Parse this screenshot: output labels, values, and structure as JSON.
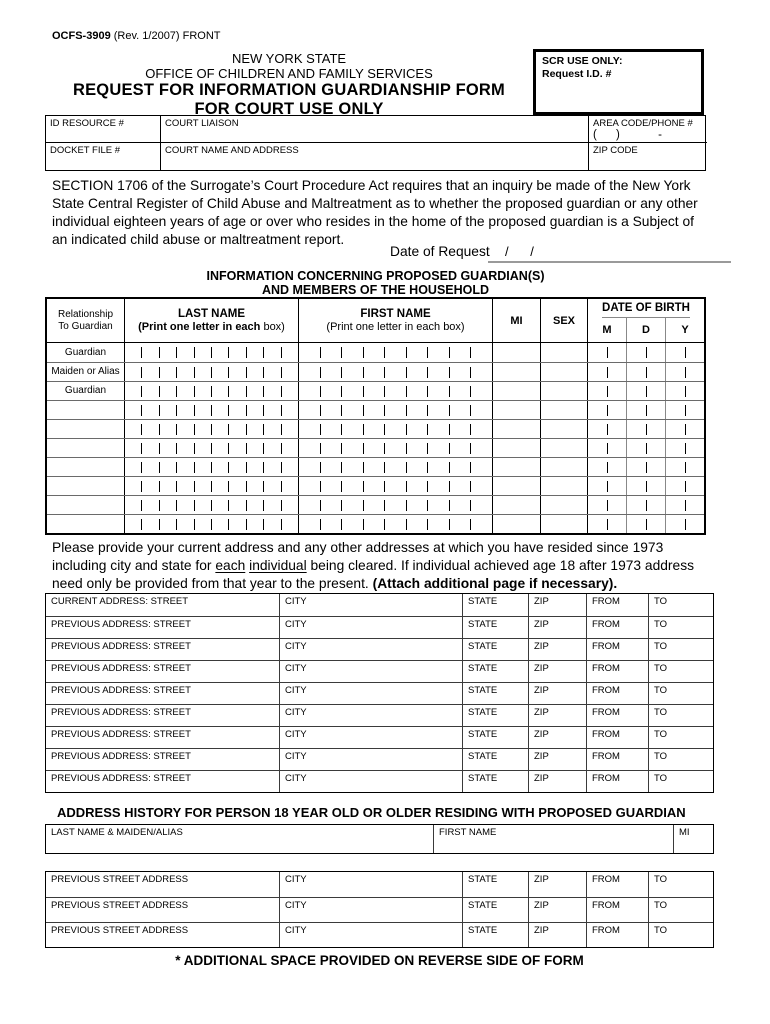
{
  "form": {
    "number": "OCFS-3909",
    "revision": " (Rev. 1/2007) FRONT",
    "org_line1": "NEW YORK STATE",
    "org_line2": "OFFICE OF CHILDREN AND FAMILY SERVICES",
    "title_line1": "REQUEST FOR INFORMATION GUARDIANSHIP FORM",
    "title_line2": "FOR COURT USE ONLY"
  },
  "scr_box": {
    "line1": "SCR USE ONLY:",
    "line2": "Request I.D. #"
  },
  "info_grid": {
    "id_resource": "ID RESOURCE #",
    "court_liaison": "COURT LIAISON",
    "area_code": "AREA CODE/PHONE #",
    "phone_placeholder": "(      )            -",
    "docket_file": "DOCKET FILE #",
    "court_name": "COURT  NAME AND ADDRESS",
    "zip_code": "ZIP CODE"
  },
  "intro_paragraph": "SECTION 1706 of the Surrogate’s Court Procedure Act requires that an inquiry be made of the New York State Central Register of Child Abuse and Maltreatment as to whether the proposed guardian or any other individual eighteen years of age or over who resides in the home of the proposed guardian is a Subject of an indicated child abuse or maltreatment report.",
  "date_of_request": {
    "label": "Date of Request",
    "value": "/      /"
  },
  "guardian_table": {
    "title_line1": "INFORMATION CONCERNING PROPOSED GUARDIAN(S)",
    "title_line2": "AND MEMBERS OF THE HOUSEHOLD",
    "col_relationship_line1": "Relationship",
    "col_relationship_line2": "To Guardian",
    "col_last_name": "LAST NAME",
    "col_last_name_sub_bold": "(Print one letter in each",
    "col_last_name_sub_regular": " box)",
    "col_first_name": "FIRST NAME",
    "col_first_name_sub": "(Print one letter in each box)",
    "col_mi": "MI",
    "col_sex": "SEX",
    "col_dob": "DATE OF BIRTH",
    "dob_subcols": [
      "M",
      "D",
      "Y"
    ],
    "row_labels": [
      "Guardian",
      "Maiden or Alias",
      "Guardian",
      "",
      "",
      "",
      "",
      "",
      "",
      ""
    ],
    "last_name_ticks": 9,
    "first_name_ticks": 8
  },
  "address_section": {
    "paragraph_part1": "Please provide your current address and any other addresses at which you have resided since 1973 including city and state for ",
    "underline1": "each",
    "paragraph_space": " ",
    "underline2": "individual",
    "paragraph_part2": " being cleared. If individual achieved age 18 after 1973 address need only be provided from that year to the present. ",
    "paragraph_bold": "(Attach additional page if necessary).",
    "current_row_label": "CURRENT ADDRESS: STREET",
    "previous_row_label": "PREVIOUS ADDRESS: STREET",
    "previous_row_count": 8,
    "columns": [
      "CITY",
      "STATE",
      "ZIP",
      "FROM",
      "TO"
    ]
  },
  "history_section": {
    "heading": "ADDRESS HISTORY FOR PERSON 18 YEAR OLD OR OLDER RESIDING WITH PROPOSED GUARDIAN",
    "name_columns": [
      "LAST NAME & MAIDEN/ALIAS",
      "FIRST NAME",
      "MI"
    ],
    "address_row_label": "PREVIOUS STREET ADDRESS",
    "address_row_count": 3,
    "address_columns": [
      "CITY",
      "STATE",
      "ZIP",
      "FROM",
      "TO"
    ]
  },
  "footer_note": "* ADDITIONAL SPACE PROVIDED ON REVERSE SIDE OF FORM"
}
